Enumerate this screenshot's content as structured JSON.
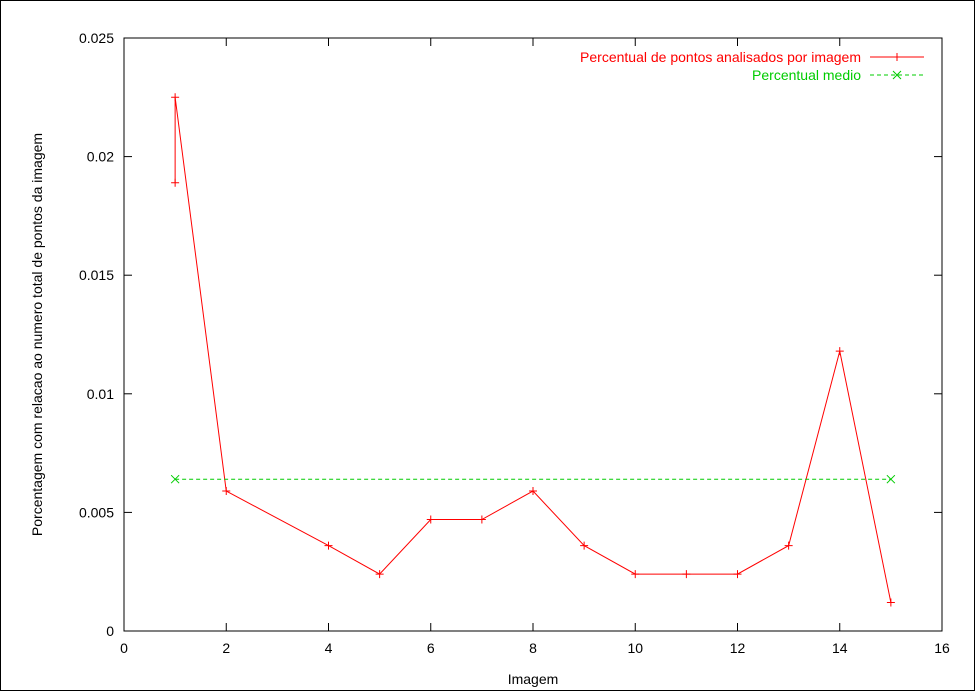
{
  "chart_data": {
    "type": "line",
    "title": "",
    "xlabel": "Imagem",
    "ylabel": "Porcentagem com relacao ao numero total de pontos da imagem",
    "xlim": [
      0,
      16
    ],
    "ylim": [
      0,
      0.025
    ],
    "xticks": [
      0,
      2,
      4,
      6,
      8,
      10,
      12,
      14,
      16
    ],
    "yticks": [
      0,
      0.005,
      0.01,
      0.015,
      0.02,
      0.025
    ],
    "xtick_labels": [
      "0",
      "2",
      "4",
      "6",
      "8",
      "10",
      "12",
      "14",
      "16"
    ],
    "ytick_labels": [
      "0",
      "0.005",
      "0.01",
      "0.015",
      "0.02",
      "0.025"
    ],
    "grid": false,
    "legend_position": "top-right",
    "series": [
      {
        "name": "Percentual de pontos analisados por imagem",
        "color": "#ff0000",
        "marker": "plus",
        "line": "solid",
        "points": [
          [
            1,
            0.0189
          ],
          [
            1,
            0.0225
          ],
          [
            2,
            0.0059
          ],
          [
            4,
            0.0036
          ],
          [
            5,
            0.0024
          ],
          [
            6,
            0.0047
          ],
          [
            7,
            0.0047
          ],
          [
            8,
            0.0059
          ],
          [
            9,
            0.0036
          ],
          [
            10,
            0.0024
          ],
          [
            11,
            0.0024
          ],
          [
            12,
            0.0024
          ],
          [
            13,
            0.0036
          ],
          [
            14,
            0.0118
          ],
          [
            15,
            0.0012
          ]
        ]
      },
      {
        "name": "Percentual medio",
        "color": "#00cc00",
        "marker": "cross",
        "line": "dashed",
        "points": [
          [
            1,
            0.0064
          ],
          [
            15,
            0.0064
          ]
        ]
      }
    ]
  }
}
